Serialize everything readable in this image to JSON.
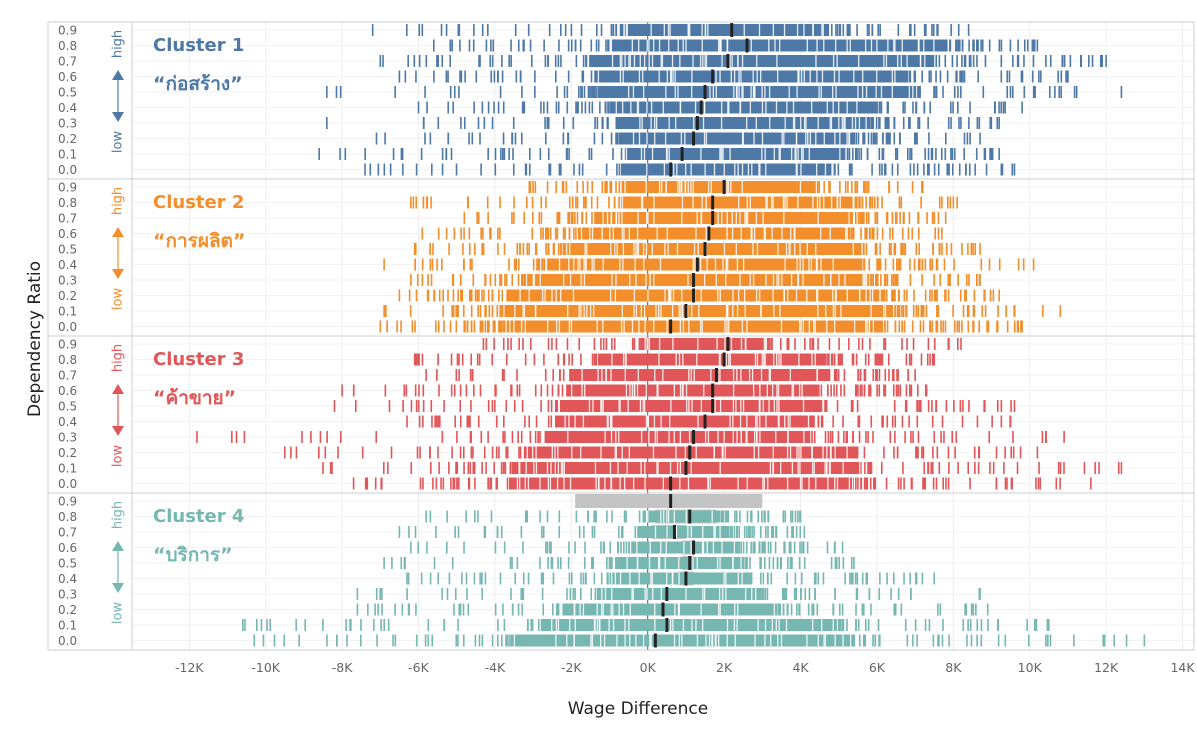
{
  "chart_data": {
    "type": "strip",
    "xlabel": "Wage Difference",
    "ylabel": "Dependency Ratio",
    "xlim": [
      -13500,
      14300
    ],
    "x_ticks": [
      -12000,
      -10000,
      -8000,
      -6000,
      -4000,
      -2000,
      0,
      2000,
      4000,
      6000,
      8000,
      10000,
      12000,
      14000
    ],
    "x_tick_labels": [
      "-12K",
      "-10K",
      "-8K",
      "-6K",
      "-4K",
      "-2K",
      "0K",
      "2K",
      "4K",
      "6K",
      "8K",
      "10K",
      "12K",
      "14K"
    ],
    "y_categories": [
      "0.9",
      "0.8",
      "0.7",
      "0.6",
      "0.5",
      "0.4",
      "0.3",
      "0.2",
      "0.1",
      "0.0"
    ],
    "high_label": "high",
    "low_label": "low",
    "grid": true,
    "panels": [
      {
        "name": "Cluster 1",
        "thai": "“ก่อสร้าง”",
        "color": "#4e79a7",
        "dense_range": [
          [
            -600,
            4700
          ],
          [
            -900,
            7800
          ],
          [
            -1500,
            7500
          ],
          [
            -1400,
            6800
          ],
          [
            -1300,
            7000
          ],
          [
            -1000,
            6000
          ],
          [
            -800,
            5800
          ],
          [
            -700,
            5400
          ],
          [
            -600,
            5100
          ],
          [
            -700,
            4900
          ]
        ],
        "spread": [
          [
            -7200,
            8400
          ],
          [
            -5600,
            10200
          ],
          [
            -7000,
            12000
          ],
          [
            -6500,
            11000
          ],
          [
            -8400,
            12400
          ],
          [
            -6000,
            9800
          ],
          [
            -8400,
            9200
          ],
          [
            -7100,
            8700
          ],
          [
            -8600,
            9200
          ],
          [
            -7400,
            9600
          ]
        ],
        "median": [
          2200,
          2600,
          2100,
          1700,
          1500,
          1400,
          1300,
          1200,
          900,
          600
        ]
      },
      {
        "name": "Cluster 2",
        "thai": "“การผลิต”",
        "color": "#f28e2b",
        "dense_range": [
          [
            -500,
            4300
          ],
          [
            -700,
            5300
          ],
          [
            -1400,
            5300
          ],
          [
            -1900,
            5200
          ],
          [
            -2200,
            5600
          ],
          [
            -2600,
            5600
          ],
          [
            -3200,
            5800
          ],
          [
            -3700,
            6100
          ],
          [
            -3800,
            6500
          ],
          [
            -3800,
            6200
          ]
        ],
        "spread": [
          [
            -3100,
            7200
          ],
          [
            -6200,
            8100
          ],
          [
            -4800,
            7800
          ],
          [
            -5900,
            7700
          ],
          [
            -6100,
            8700
          ],
          [
            -6900,
            10100
          ],
          [
            -6200,
            8700
          ],
          [
            -6500,
            9200
          ],
          [
            -6900,
            10800
          ],
          [
            -7000,
            9800
          ]
        ],
        "median": [
          2000,
          1700,
          1700,
          1600,
          1500,
          1300,
          1200,
          1200,
          1000,
          600
        ]
      },
      {
        "name": "Cluster 3",
        "thai": "“ค้าขาย”",
        "color": "#e15759",
        "dense_range": [
          [
            -200,
            3100
          ],
          [
            -1200,
            4600
          ],
          [
            -1900,
            4700
          ],
          [
            -2100,
            4500
          ],
          [
            -2300,
            4600
          ],
          [
            -2400,
            4300
          ],
          [
            -2700,
            4300
          ],
          [
            -3200,
            5400
          ],
          [
            -3500,
            5600
          ],
          [
            -3600,
            5400
          ]
        ],
        "spread": [
          [
            -4300,
            8200
          ],
          [
            -6100,
            7500
          ],
          [
            -5800,
            7000
          ],
          [
            -8000,
            7300
          ],
          [
            -8200,
            9600
          ],
          [
            -6300,
            9500
          ],
          [
            -11800,
            10900
          ],
          [
            -9500,
            10200
          ],
          [
            -8500,
            12400
          ],
          [
            -7700,
            11600
          ]
        ],
        "median": [
          2100,
          2000,
          1800,
          1700,
          1700,
          1500,
          1200,
          1100,
          1000,
          600
        ]
      },
      {
        "name": "Cluster 4",
        "thai": "“บริการ”",
        "color": "#76b7b2",
        "dense_range": [
          [
            0,
            0
          ],
          [
            -100,
            1800
          ],
          [
            -200,
            2100
          ],
          [
            -400,
            2300
          ],
          [
            -700,
            2500
          ],
          [
            -1000,
            2600
          ],
          [
            -1300,
            3000
          ],
          [
            -2400,
            3400
          ],
          [
            -2800,
            5000
          ],
          [
            -3600,
            5400
          ]
        ],
        "spread": [
          [
            0,
            0
          ],
          [
            -5800,
            4000
          ],
          [
            -6500,
            4100
          ],
          [
            -6200,
            5100
          ],
          [
            -6900,
            5400
          ],
          [
            -6300,
            7500
          ],
          [
            -7600,
            8700
          ],
          [
            -7600,
            8900
          ],
          [
            -10600,
            10500
          ],
          [
            -10300,
            13000
          ]
        ],
        "median": [
          600,
          1100,
          700,
          1200,
          1100,
          1000,
          500,
          400,
          500,
          200
        ],
        "gray_band": [
          [
            -1900,
            3000
          ],
          [
            200,
            1800
          ],
          [
            100,
            1000
          ],
          [
            900,
            1200
          ],
          [
            900,
            1200
          ],
          [
            800,
            1200
          ]
        ]
      }
    ]
  }
}
